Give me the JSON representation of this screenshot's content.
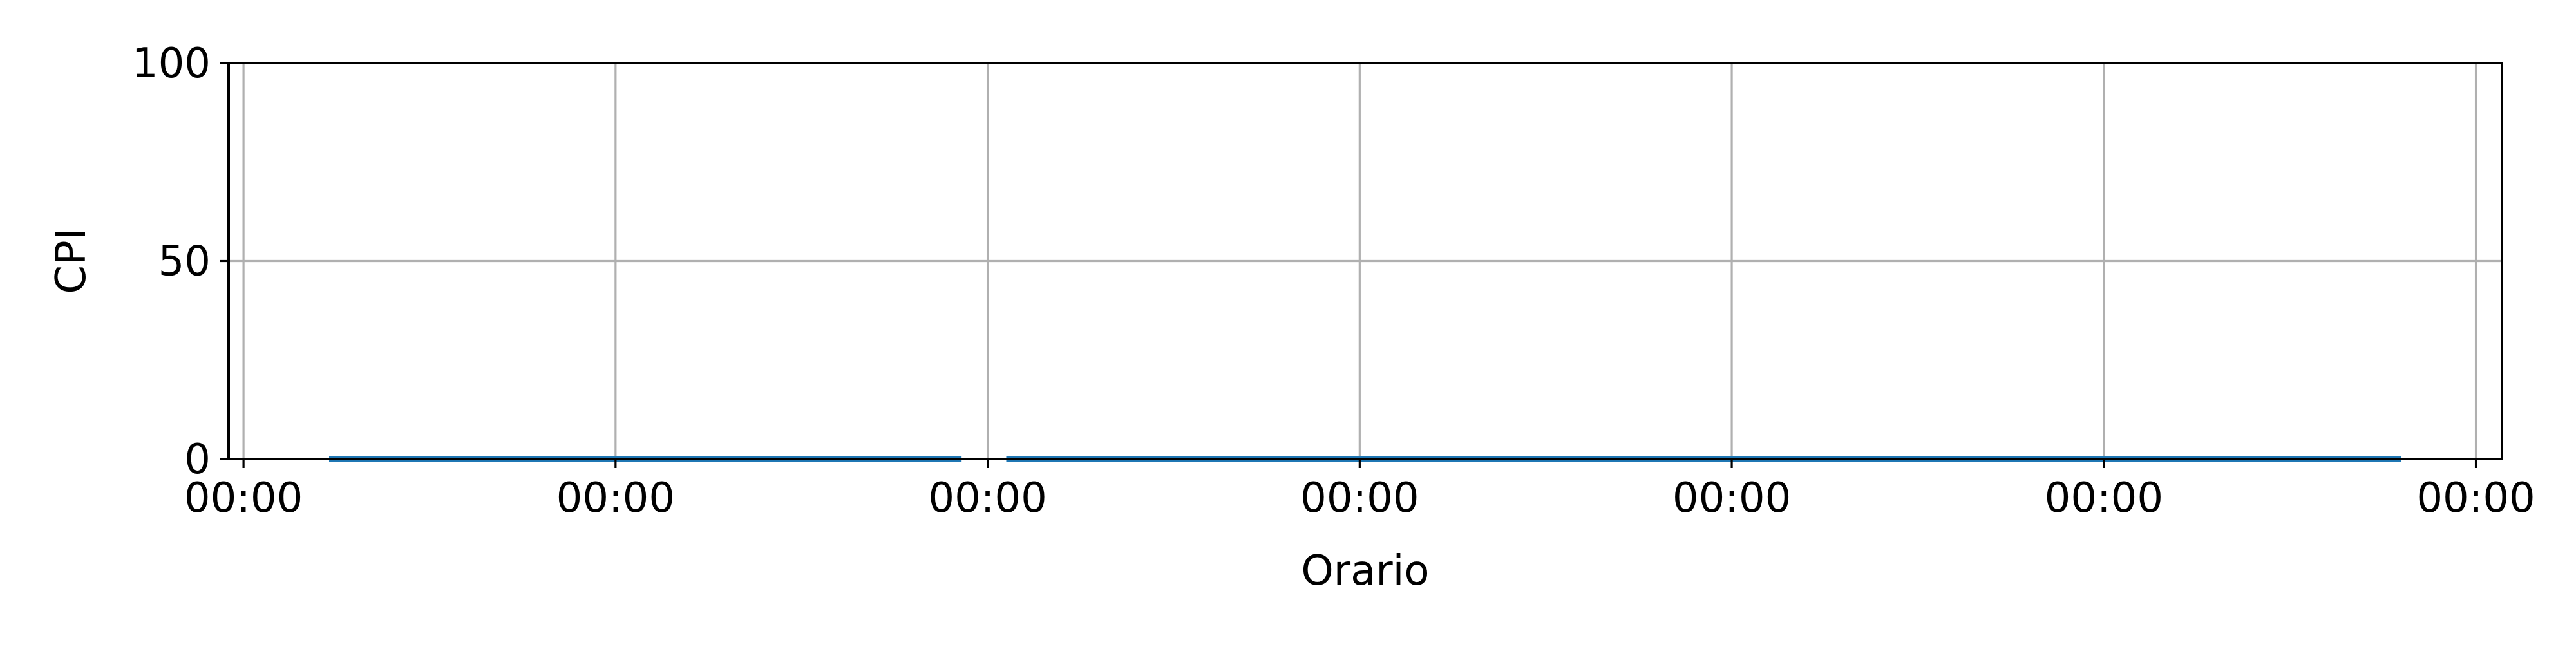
{
  "chart_data": {
    "type": "line",
    "xlabel": "Orario",
    "ylabel": "CPI",
    "ylim": [
      0,
      100
    ],
    "y_ticks": [
      0,
      50,
      100
    ],
    "x_tick_labels": [
      "00:00",
      "00:00",
      "00:00",
      "00:00",
      "00:00",
      "00:00",
      "00:00"
    ],
    "grid": true,
    "series": [
      {
        "color": "#1f77b4",
        "x": [
          0.23,
          1.93
        ],
        "values": [
          0,
          0
        ]
      },
      {
        "color": "#1f77b4",
        "x": [
          2.05,
          5.8
        ],
        "values": [
          0,
          0
        ]
      }
    ],
    "xlim": [
      -0.04,
      6.07
    ]
  }
}
